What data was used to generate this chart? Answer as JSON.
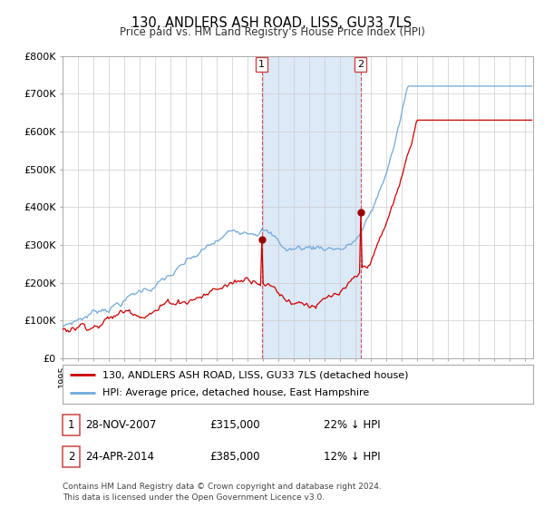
{
  "title": "130, ANDLERS ASH ROAD, LISS, GU33 7LS",
  "subtitle": "Price paid vs. HM Land Registry's House Price Index (HPI)",
  "legend_line1": "130, ANDLERS ASH ROAD, LISS, GU33 7LS (detached house)",
  "legend_line2": "HPI: Average price, detached house, East Hampshire",
  "table_rows": [
    {
      "num": "1",
      "date": "28-NOV-2007",
      "price": "£315,000",
      "hpi": "22% ↓ HPI"
    },
    {
      "num": "2",
      "date": "24-APR-2014",
      "price": "£385,000",
      "hpi": "12% ↓ HPI"
    }
  ],
  "footnote": "Contains HM Land Registry data © Crown copyright and database right 2024.\nThis data is licensed under the Open Government Licence v3.0.",
  "sale1_year": 2007.91,
  "sale1_price": 315000,
  "sale2_year": 2014.32,
  "sale2_price": 385000,
  "hpi_color": "#6fa8dc",
  "sale_color": "#cc0000",
  "shade_color": "#dce9f7",
  "vline_color": "#cc4444",
  "dot_color": "#990000",
  "ylim": [
    0,
    800000
  ],
  "yticks": [
    0,
    100000,
    200000,
    300000,
    400000,
    500000,
    600000,
    700000,
    800000
  ],
  "ytick_labels": [
    "£0",
    "£100K",
    "£200K",
    "£300K",
    "£400K",
    "£500K",
    "£600K",
    "£700K",
    "£800K"
  ],
  "xmin": 1995,
  "xmax": 2025.5
}
